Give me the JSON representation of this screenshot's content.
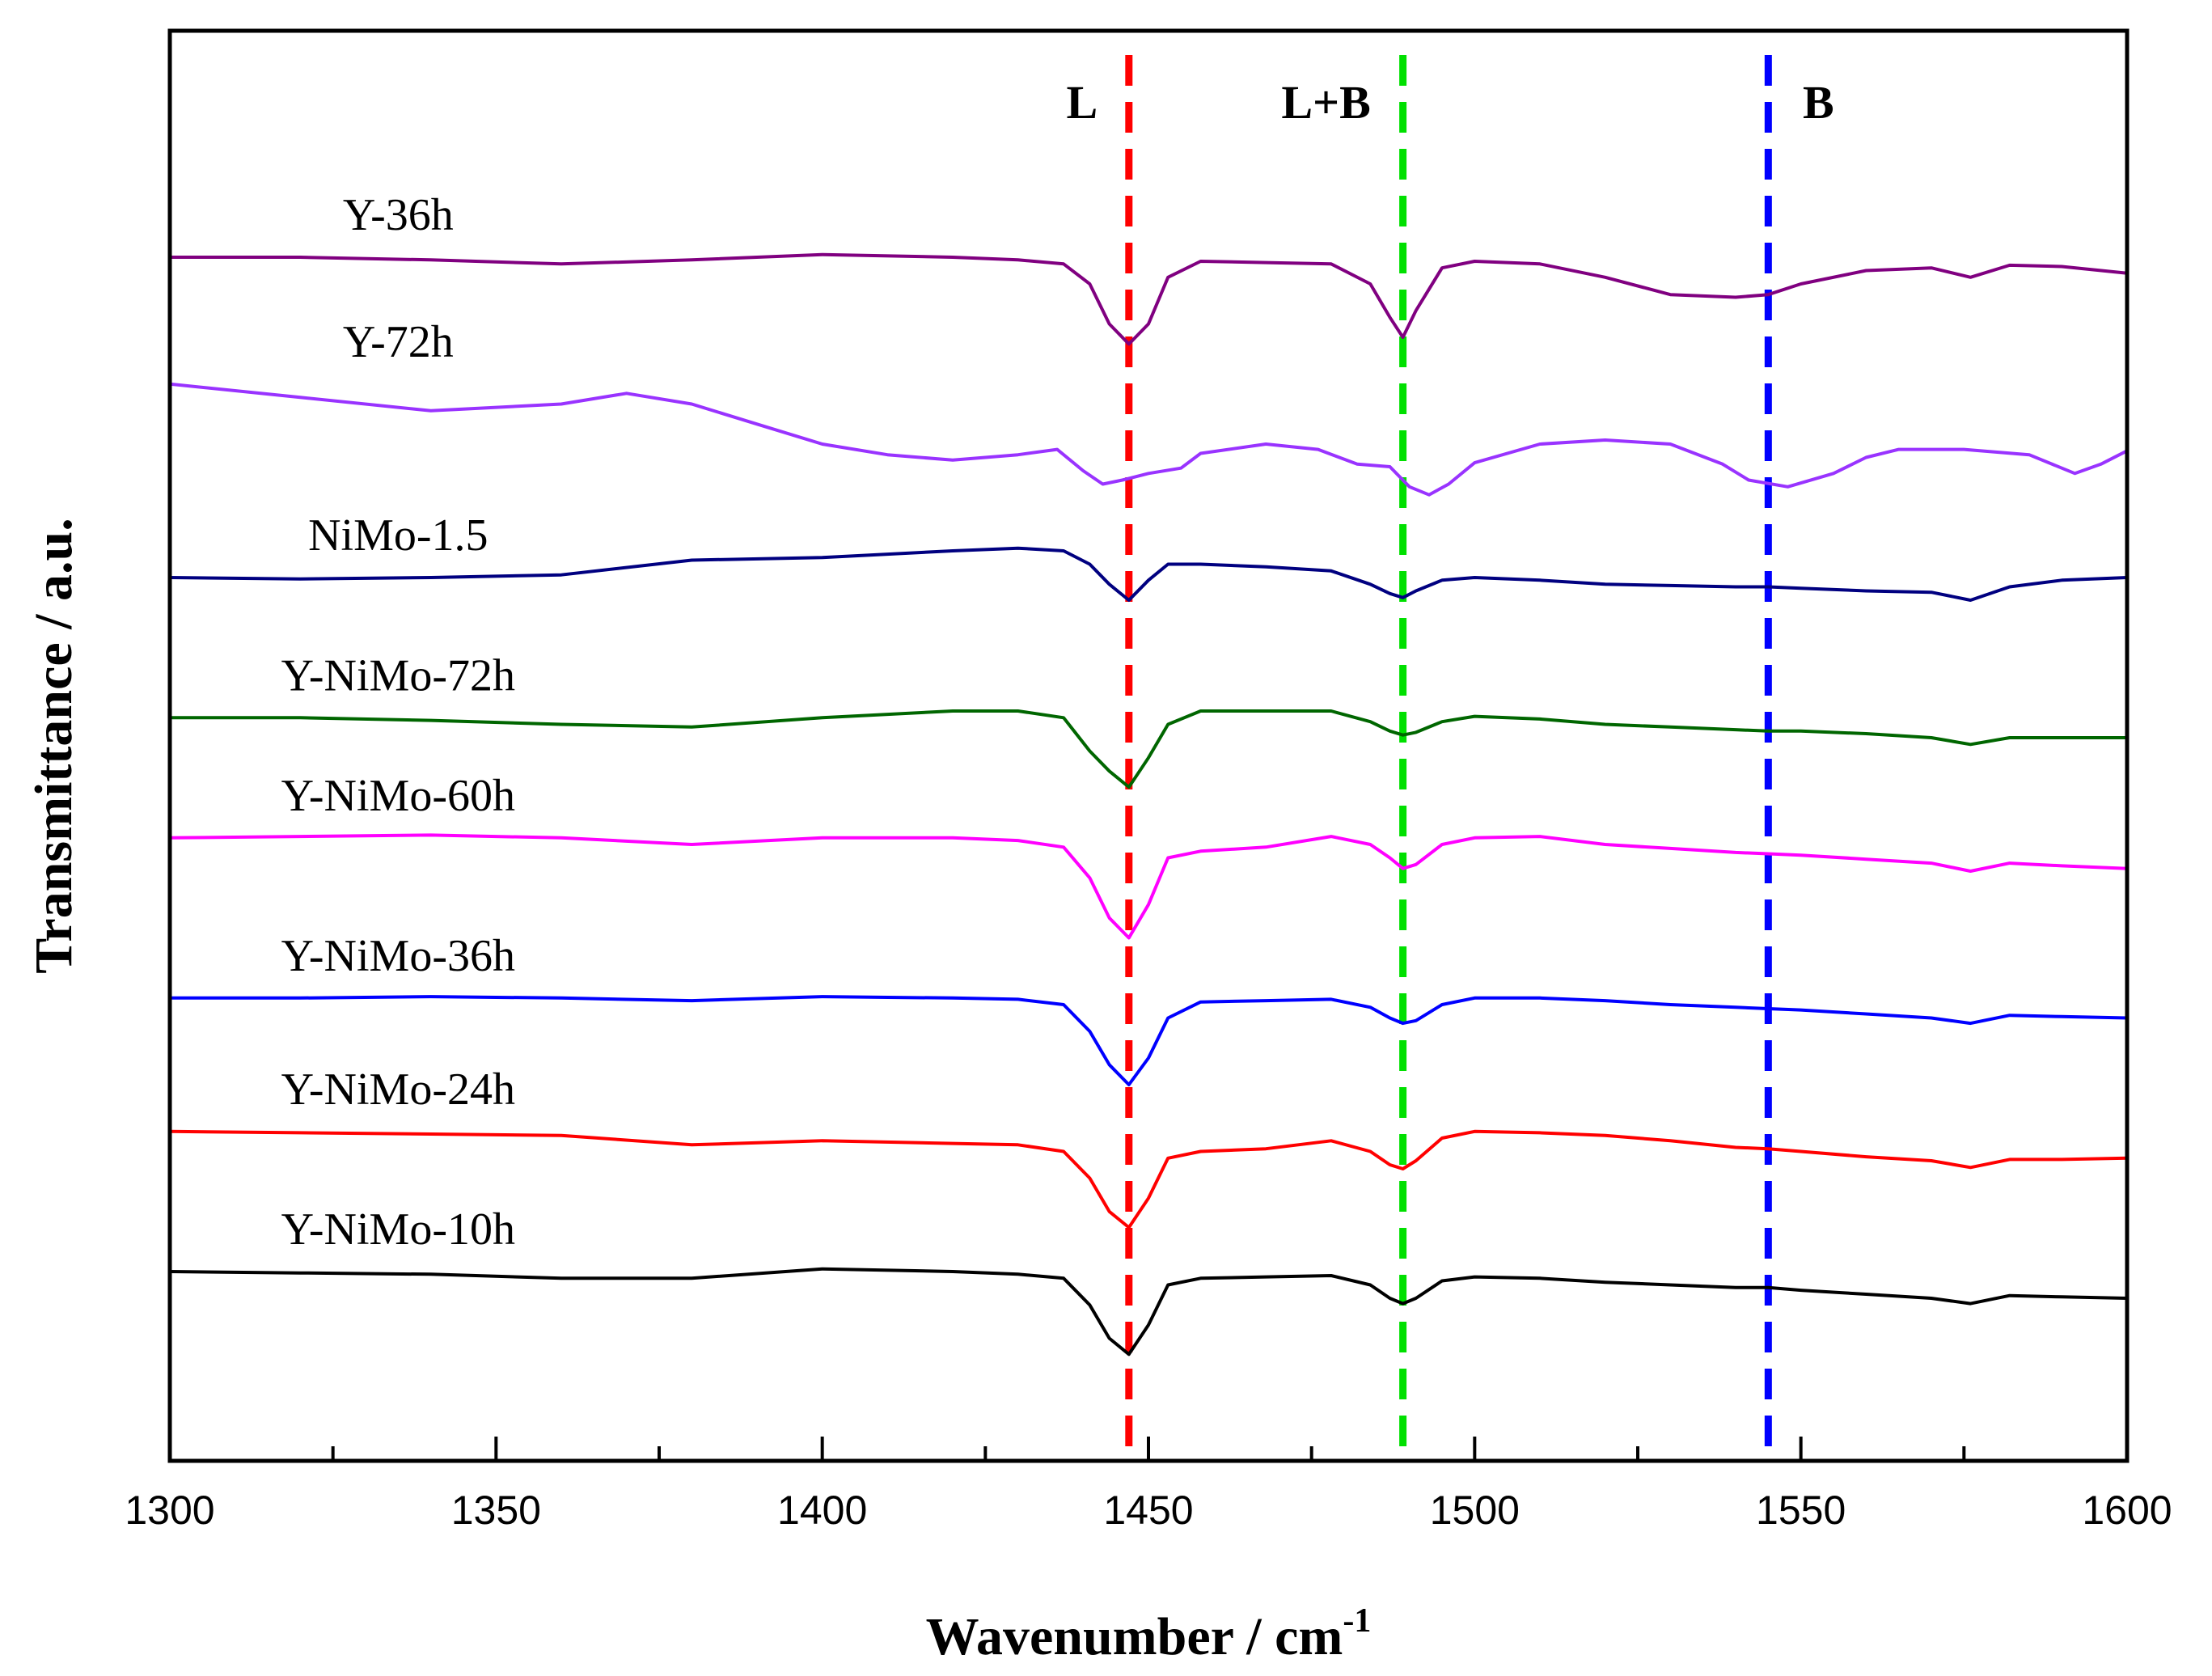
{
  "chart_data": {
    "type": "line",
    "title": "",
    "xlabel": "Wavenumber / cm",
    "xlabel_sup": "-1",
    "ylabel": "Transmittance / a.u.",
    "xlim": [
      1300,
      1600
    ],
    "ylim": [
      0,
      100
    ],
    "x_ticks": [
      1300,
      1350,
      1400,
      1450,
      1500,
      1550,
      1600
    ],
    "x_tick_labels": [
      "1300",
      "1350",
      "1400",
      "1450",
      "1500",
      "1550",
      "1600"
    ],
    "y_ticks_shown": false,
    "grid": false,
    "reference_lines": [
      {
        "label": "L",
        "x": 1447,
        "color": "#ff0000"
      },
      {
        "label": "L+B",
        "x": 1489,
        "color": "#00e000"
      },
      {
        "label": "B",
        "x": 1545,
        "color": "#0000ff"
      }
    ],
    "series": [
      {
        "name": "Y-36h",
        "color": "#800080",
        "x": [
          1300,
          1320,
          1340,
          1360,
          1380,
          1400,
          1420,
          1430,
          1437,
          1441,
          1444,
          1447,
          1450,
          1453,
          1458,
          1468,
          1478,
          1484,
          1487,
          1489,
          1491,
          1495,
          1500,
          1510,
          1520,
          1530,
          1540,
          1545,
          1550,
          1560,
          1570,
          1576,
          1582,
          1590,
          1600
        ],
        "y": [
          88.0,
          88.0,
          87.8,
          87.5,
          87.8,
          88.2,
          88.0,
          87.8,
          87.5,
          86.0,
          83.0,
          81.5,
          83.0,
          86.5,
          87.7,
          87.6,
          87.5,
          86.0,
          83.5,
          82.0,
          84.0,
          87.2,
          87.7,
          87.5,
          86.5,
          85.2,
          85.0,
          85.2,
          86.0,
          87.0,
          87.2,
          86.5,
          87.4,
          87.3,
          86.8
        ]
      },
      {
        "name": "Y-72h",
        "color": "#9933ff",
        "x": [
          1300,
          1320,
          1340,
          1360,
          1370,
          1380,
          1390,
          1400,
          1410,
          1420,
          1430,
          1436,
          1440,
          1443,
          1446,
          1450,
          1455,
          1458,
          1468,
          1476,
          1482,
          1487,
          1490,
          1493,
          1496,
          1500,
          1510,
          1520,
          1530,
          1538,
          1542,
          1548,
          1555,
          1560,
          1565,
          1575,
          1585,
          1592,
          1596,
          1600
        ],
        "y": [
          78.5,
          77.5,
          76.5,
          77.0,
          77.8,
          77.0,
          75.5,
          74.0,
          73.2,
          72.8,
          73.2,
          73.6,
          72.0,
          71.0,
          71.3,
          71.8,
          72.2,
          73.3,
          74.0,
          73.6,
          72.5,
          72.3,
          70.8,
          70.2,
          71.0,
          72.6,
          74.0,
          74.3,
          74.0,
          72.5,
          71.3,
          70.8,
          71.8,
          73.0,
          73.6,
          73.6,
          73.2,
          71.8,
          72.5,
          73.5
        ]
      },
      {
        "name": "NiMo-1.5",
        "color": "#000080",
        "x": [
          1300,
          1320,
          1340,
          1360,
          1380,
          1400,
          1420,
          1430,
          1437,
          1441,
          1444,
          1447,
          1450,
          1453,
          1458,
          1468,
          1478,
          1484,
          1487,
          1489,
          1491,
          1495,
          1500,
          1510,
          1520,
          1530,
          1540,
          1545,
          1550,
          1560,
          1570,
          1576,
          1582,
          1590,
          1600
        ],
        "y": [
          64.0,
          63.9,
          64.0,
          64.2,
          65.3,
          65.5,
          66.0,
          66.2,
          66.0,
          65.0,
          63.5,
          62.3,
          63.8,
          65.0,
          65.0,
          64.8,
          64.5,
          63.5,
          62.8,
          62.5,
          63.0,
          63.8,
          64.0,
          63.8,
          63.5,
          63.4,
          63.3,
          63.3,
          63.2,
          63.0,
          62.9,
          62.3,
          63.3,
          63.8,
          64.0
        ]
      },
      {
        "name": "Y-NiMo-72h",
        "color": "#006600",
        "x": [
          1300,
          1320,
          1340,
          1360,
          1380,
          1400,
          1420,
          1430,
          1437,
          1441,
          1444,
          1447,
          1450,
          1453,
          1458,
          1468,
          1478,
          1484,
          1487,
          1489,
          1491,
          1495,
          1500,
          1510,
          1520,
          1530,
          1540,
          1545,
          1550,
          1560,
          1570,
          1576,
          1582,
          1590,
          1600
        ],
        "y": [
          53.5,
          53.5,
          53.3,
          53.0,
          52.8,
          53.5,
          54.0,
          54.0,
          53.5,
          51.0,
          49.5,
          48.3,
          50.5,
          53.0,
          54.0,
          54.0,
          54.0,
          53.2,
          52.5,
          52.2,
          52.4,
          53.2,
          53.6,
          53.4,
          53.0,
          52.8,
          52.6,
          52.5,
          52.5,
          52.3,
          52.0,
          51.5,
          52.0,
          52.0,
          52.0
        ]
      },
      {
        "name": "Y-NiMo-60h",
        "color": "#ff00ff",
        "x": [
          1300,
          1320,
          1340,
          1360,
          1380,
          1400,
          1420,
          1430,
          1437,
          1441,
          1444,
          1447,
          1450,
          1453,
          1458,
          1468,
          1478,
          1484,
          1487,
          1489,
          1491,
          1495,
          1500,
          1510,
          1520,
          1530,
          1540,
          1545,
          1550,
          1560,
          1570,
          1576,
          1582,
          1590,
          1600
        ],
        "y": [
          44.5,
          44.6,
          44.7,
          44.5,
          44.0,
          44.5,
          44.5,
          44.3,
          43.8,
          41.5,
          38.5,
          37.0,
          39.5,
          43.0,
          43.5,
          43.8,
          44.6,
          44.0,
          43.0,
          42.2,
          42.5,
          44.0,
          44.5,
          44.6,
          44.0,
          43.7,
          43.4,
          43.3,
          43.2,
          42.9,
          42.6,
          42.0,
          42.6,
          42.4,
          42.2
        ]
      },
      {
        "name": "Y-NiMo-36h",
        "color": "#0000ff",
        "x": [
          1300,
          1320,
          1340,
          1360,
          1380,
          1400,
          1420,
          1430,
          1437,
          1441,
          1444,
          1447,
          1450,
          1453,
          1458,
          1468,
          1478,
          1484,
          1487,
          1489,
          1491,
          1495,
          1500,
          1510,
          1520,
          1530,
          1540,
          1545,
          1550,
          1560,
          1570,
          1576,
          1582,
          1590,
          1600
        ],
        "y": [
          32.5,
          32.5,
          32.6,
          32.5,
          32.3,
          32.6,
          32.5,
          32.4,
          32.0,
          30.0,
          27.5,
          26.0,
          28.0,
          31.0,
          32.2,
          32.3,
          32.4,
          31.8,
          31.0,
          30.6,
          30.8,
          32.0,
          32.5,
          32.5,
          32.3,
          32.0,
          31.8,
          31.7,
          31.6,
          31.3,
          31.0,
          30.6,
          31.2,
          31.1,
          31.0
        ]
      },
      {
        "name": "Y-NiMo-24h",
        "color": "#ff0000",
        "x": [
          1300,
          1320,
          1340,
          1360,
          1380,
          1400,
          1420,
          1430,
          1437,
          1441,
          1444,
          1447,
          1450,
          1453,
          1458,
          1468,
          1478,
          1484,
          1487,
          1489,
          1491,
          1495,
          1500,
          1510,
          1520,
          1530,
          1540,
          1545,
          1550,
          1560,
          1570,
          1576,
          1582,
          1590,
          1600
        ],
        "y": [
          22.5,
          22.4,
          22.3,
          22.2,
          21.5,
          21.8,
          21.6,
          21.5,
          21.0,
          19.0,
          16.5,
          15.3,
          17.5,
          20.5,
          21.0,
          21.2,
          21.8,
          21.0,
          20.0,
          19.7,
          20.3,
          22.0,
          22.5,
          22.4,
          22.2,
          21.8,
          21.3,
          21.2,
          21.0,
          20.6,
          20.3,
          19.8,
          20.4,
          20.4,
          20.5
        ]
      },
      {
        "name": "Y-NiMo-10h",
        "color": "#000000",
        "x": [
          1300,
          1320,
          1340,
          1360,
          1380,
          1400,
          1420,
          1430,
          1437,
          1441,
          1444,
          1447,
          1450,
          1453,
          1458,
          1468,
          1478,
          1484,
          1487,
          1489,
          1491,
          1495,
          1500,
          1510,
          1520,
          1530,
          1540,
          1545,
          1550,
          1560,
          1570,
          1576,
          1582,
          1590,
          1600
        ],
        "y": [
          12.0,
          11.9,
          11.8,
          11.5,
          11.5,
          12.2,
          12.0,
          11.8,
          11.5,
          9.5,
          7.0,
          5.8,
          8.0,
          11.0,
          11.5,
          11.6,
          11.7,
          11.0,
          10.0,
          9.6,
          10.0,
          11.3,
          11.6,
          11.5,
          11.2,
          11.0,
          10.8,
          10.8,
          10.6,
          10.3,
          10.0,
          9.6,
          10.2,
          10.1,
          10.0
        ]
      }
    ]
  }
}
